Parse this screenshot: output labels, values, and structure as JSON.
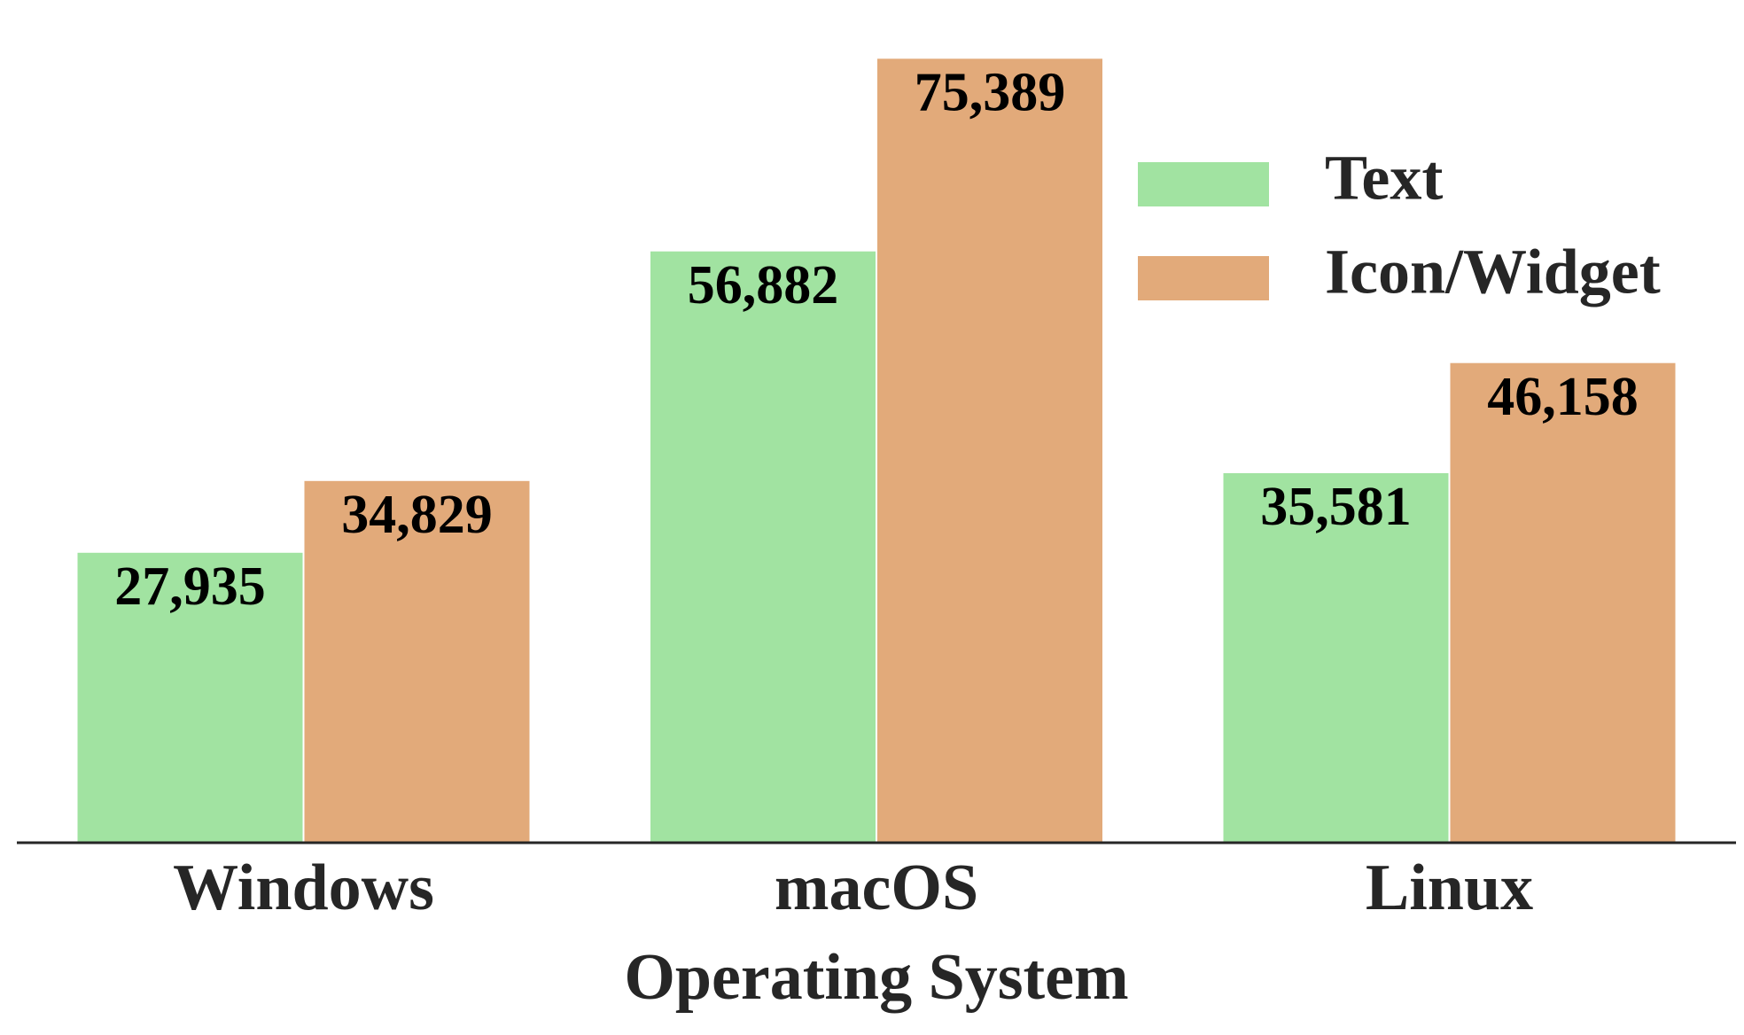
{
  "chart_data": {
    "type": "bar",
    "x_label": "Operating System",
    "categories": [
      "Windows",
      "macOS",
      "Linux"
    ],
    "series": [
      {
        "name": "Text",
        "color": "#a1e3a1",
        "values": [
          27935,
          56882,
          35581
        ],
        "value_labels": [
          "27,935",
          "56,882",
          "35,581"
        ]
      },
      {
        "name": "Icon/Widget",
        "color": "#e2aa7a",
        "values": [
          34829,
          75389,
          46158
        ],
        "value_labels": [
          "34,829",
          "75,389",
          "46,158"
        ]
      }
    ],
    "ylim": [
      0,
      79158
    ],
    "legend": "upper right"
  }
}
